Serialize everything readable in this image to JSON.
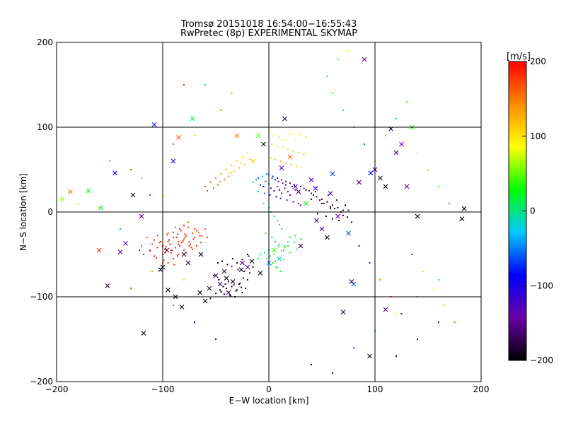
{
  "chart_data": {
    "type": "scatter",
    "title": "Tromsø 20151018 16:54:00−16:55:43",
    "subtitle": "RwPretec (8p) EXPERIMENTAL SKYMAP",
    "xlabel": "E−W location [km]",
    "ylabel": "N−S location [km]",
    "xlim": [
      -200,
      200
    ],
    "ylim": [
      -200,
      200
    ],
    "xticks": [
      -200,
      -100,
      0,
      100,
      200
    ],
    "yticks": [
      -200,
      -100,
      0,
      100,
      200
    ],
    "grid": true,
    "colorbar": {
      "label": "[m/s]",
      "range": [
        -200,
        200
      ],
      "ticks": [
        200,
        100,
        0,
        -100,
        -200
      ],
      "colors": [
        "#000000",
        "#6a00a8",
        "#0000ff",
        "#00c8ff",
        "#00ff00",
        "#ffff00",
        "#ff8c00",
        "#ff0000"
      ]
    },
    "series": [
      {
        "marker": "dot",
        "x": [
          -100,
          -95,
          -90,
          -85,
          -80,
          -78,
          -75,
          -72,
          -70,
          -68,
          -65,
          -92,
          -88,
          -84,
          -82,
          -110,
          -105,
          -98,
          -94,
          -86,
          -115,
          -112,
          -108,
          -102,
          -96,
          -90,
          -85,
          -80,
          -75,
          -70,
          -100,
          -95,
          -88,
          -83,
          -78,
          -73,
          -105,
          -100,
          -93,
          -87,
          -81,
          -98,
          -92,
          -86,
          -79,
          -120,
          -118,
          -76,
          -74,
          -71,
          -66,
          -63,
          -60,
          -58,
          -90,
          -84,
          -80,
          -76,
          -72,
          -68,
          -64,
          -108,
          -103,
          -97,
          -91,
          -85,
          -79,
          -112,
          -106,
          -99,
          -95,
          -89
        ],
        "y": [
          -40,
          -35,
          -30,
          -38,
          -32,
          -28,
          -35,
          -25,
          -30,
          -22,
          -28,
          -45,
          -42,
          -40,
          -36,
          -38,
          -42,
          -48,
          -33,
          -26,
          -30,
          -45,
          -52,
          -35,
          -27,
          -55,
          -50,
          -45,
          -40,
          -20,
          -60,
          -25,
          -18,
          -22,
          -48,
          -42,
          -28,
          -50,
          -38,
          -30,
          -34,
          -44,
          -48,
          -52,
          -26,
          -40,
          -50,
          -18,
          -38,
          -32,
          -24,
          -28,
          -20,
          -30,
          -24,
          -20,
          -16,
          -12,
          -44,
          -40,
          -36,
          -33,
          -36,
          -41,
          -45,
          -35,
          -30,
          -46,
          -54,
          -57,
          -60,
          -62
        ],
        "velocity": [
          190,
          185,
          180,
          195,
          175,
          188,
          192,
          170,
          185,
          178,
          190,
          196,
          184,
          180,
          188,
          175,
          190,
          182,
          186,
          194,
          176,
          184,
          190,
          182,
          178,
          186,
          192,
          180,
          174,
          170,
          188,
          176,
          168,
          182,
          186,
          190,
          178,
          184,
          192,
          188,
          180,
          186,
          190,
          194,
          176,
          172,
          180,
          170,
          186,
          188,
          160,
          166,
          172,
          178,
          180,
          186,
          190,
          174,
          182,
          184,
          178,
          188,
          190,
          186,
          180,
          176,
          184,
          192,
          186,
          180,
          176,
          188
        ]
      },
      {
        "marker": "dot",
        "x": [
          -40,
          -35,
          -30,
          -28,
          -25,
          -22,
          -20,
          -38,
          -33,
          -27,
          -24,
          -45,
          -42,
          -36,
          -31,
          -26,
          -18,
          -15,
          -48,
          -44,
          -39,
          -34,
          -29,
          -23,
          -19,
          -52,
          -47,
          -41,
          -37,
          -32,
          -55,
          -50,
          -46,
          -43,
          -35,
          -30,
          -25,
          -20
        ],
        "y": [
          -90,
          -88,
          -92,
          -85,
          -95,
          -90,
          -80,
          -82,
          -86,
          -84,
          -78,
          -94,
          -97,
          -99,
          -93,
          -89,
          -72,
          -65,
          -60,
          -58,
          -62,
          -55,
          -68,
          -70,
          -52,
          -75,
          -80,
          -85,
          -98,
          -100,
          -102,
          -96,
          -92,
          -88,
          -64,
          -60,
          -56,
          -50
        ],
        "velocity": [
          -195,
          -190,
          -198,
          -185,
          -192,
          -188,
          -180,
          -186,
          -194,
          -190,
          -182,
          -196,
          -192,
          -188,
          -184,
          -190,
          -176,
          -170,
          -186,
          -192,
          -194,
          -188,
          -182,
          -180,
          -176,
          -190,
          -186,
          -184,
          -196,
          -192,
          -188,
          -194,
          -190,
          -186,
          -180,
          -176,
          -184,
          -190
        ]
      },
      {
        "marker": "dot",
        "x": [
          30,
          35,
          40,
          45,
          50,
          55,
          60,
          65,
          70,
          38,
          42,
          48,
          52,
          58,
          62,
          68,
          33,
          44,
          56,
          64,
          72,
          75,
          46,
          54,
          60,
          66,
          40,
          50,
          58,
          70,
          74,
          78
        ],
        "y": [
          30,
          26,
          22,
          18,
          15,
          12,
          8,
          5,
          2,
          25,
          20,
          14,
          10,
          6,
          4,
          0,
          28,
          24,
          20,
          14,
          8,
          2,
          -2,
          -5,
          -8,
          -10,
          15,
          10,
          4,
          -4,
          -6,
          -12
        ],
        "velocity": [
          -160,
          -170,
          -175,
          -180,
          -165,
          -190,
          -185,
          -195,
          -180,
          -150,
          -160,
          -172,
          -178,
          -190,
          -186,
          -196,
          -140,
          -155,
          -176,
          -188,
          -192,
          -198,
          -180,
          -186,
          -190,
          -194,
          -168,
          -176,
          -184,
          -190,
          -194,
          -198
        ]
      },
      {
        "marker": "dot",
        "x": [
          -15,
          -12,
          -10,
          -8,
          -5,
          -3,
          0,
          2,
          5,
          8,
          10,
          12,
          15,
          18,
          20,
          -6,
          -2,
          3,
          6,
          9,
          13,
          16,
          22,
          25,
          -10,
          -4,
          1,
          7,
          11,
          17,
          23,
          28,
          30,
          0,
          4,
          8,
          12,
          16,
          20,
          24
        ],
        "y": [
          35,
          38,
          40,
          32,
          30,
          36,
          33,
          28,
          25,
          30,
          26,
          22,
          28,
          24,
          20,
          42,
          45,
          40,
          38,
          36,
          34,
          32,
          30,
          26,
          24,
          22,
          20,
          18,
          16,
          14,
          12,
          10,
          8,
          44,
          42,
          40,
          38,
          36,
          34,
          32
        ],
        "velocity": [
          -20,
          -40,
          -60,
          -80,
          -90,
          -70,
          -50,
          -100,
          -110,
          -120,
          -95,
          -130,
          -140,
          -115,
          -150,
          -30,
          -45,
          -65,
          -85,
          -105,
          -125,
          -135,
          -145,
          -155,
          -35,
          -55,
          -75,
          -95,
          -110,
          -130,
          -140,
          -150,
          -160,
          -40,
          -60,
          -80,
          -100,
          -120,
          -140,
          -150
        ]
      },
      {
        "marker": "dot",
        "x": [
          -5,
          0,
          2,
          5,
          8,
          10,
          12,
          -3,
          3,
          6,
          9,
          14,
          -8,
          -2,
          4,
          7,
          11,
          15,
          18,
          0,
          5,
          10,
          15,
          20,
          25,
          -10,
          -4,
          1,
          6,
          12,
          18,
          24,
          30,
          2,
          8,
          14,
          20,
          26
        ],
        "y": [
          10,
          5,
          0,
          -5,
          -10,
          -15,
          -20,
          -25,
          -30,
          -35,
          -40,
          -45,
          -50,
          -55,
          -60,
          -65,
          -70,
          -40,
          -35,
          -45,
          -50,
          -38,
          -42,
          -30,
          -28,
          -55,
          -48,
          -52,
          -58,
          -46,
          -40,
          -36,
          -32,
          -62,
          -66,
          -56,
          -48,
          -44
        ],
        "velocity": [
          10,
          15,
          20,
          5,
          0,
          -5,
          25,
          30,
          20,
          10,
          15,
          5,
          0,
          10,
          20,
          30,
          25,
          15,
          5,
          10,
          20,
          30,
          40,
          25,
          15,
          10,
          0,
          5,
          15,
          25,
          35,
          20,
          10,
          30,
          40,
          35,
          25,
          15
        ]
      },
      {
        "marker": "dot",
        "x": [
          0,
          5,
          10,
          15,
          20,
          25,
          30,
          35,
          3,
          8,
          13,
          18,
          23,
          28,
          33,
          2,
          6,
          11,
          16,
          21,
          26,
          31
        ],
        "y": [
          95,
          90,
          88,
          85,
          92,
          86,
          90,
          88,
          80,
          78,
          76,
          74,
          72,
          70,
          68,
          64,
          62,
          60,
          58,
          56,
          54,
          52
        ],
        "velocity": [
          80,
          90,
          100,
          85,
          95,
          88,
          92,
          98,
          60,
          70,
          75,
          80,
          65,
          55,
          50,
          110,
          120,
          130,
          115,
          125,
          105,
          100
        ]
      },
      {
        "marker": "dot",
        "x": [
          -60,
          -55,
          -50,
          -45,
          -40,
          -35,
          -30,
          -25,
          -20,
          -52,
          -48,
          -42,
          -38,
          -33,
          -28,
          -23,
          -18,
          -58,
          -46,
          -36,
          -26
        ],
        "y": [
          30,
          35,
          40,
          45,
          50,
          55,
          60,
          65,
          70,
          28,
          32,
          38,
          42,
          48,
          52,
          56,
          62,
          25,
          36,
          46,
          58
        ],
        "velocity": [
          170,
          160,
          150,
          140,
          130,
          120,
          110,
          100,
          90,
          175,
          165,
          155,
          145,
          135,
          125,
          115,
          105,
          180,
          150,
          130,
          110
        ]
      },
      {
        "marker": "dot",
        "x": [
          -150,
          -130,
          -120,
          -112,
          -90,
          -70,
          -60,
          -180,
          -160,
          -140,
          -122,
          -100,
          -80,
          -45,
          -35,
          60,
          70,
          80,
          90,
          100,
          110,
          120,
          130,
          140,
          150,
          160,
          170,
          180,
          85,
          95,
          105,
          115,
          125,
          135,
          145,
          155,
          165,
          175,
          55,
          65,
          75,
          120,
          140,
          160,
          -130,
          -110,
          -90,
          -70,
          -50,
          40,
          60,
          80,
          100,
          120,
          140,
          160,
          -100,
          -80
        ],
        "y": [
          60,
          50,
          40,
          20,
          80,
          90,
          150,
          10,
          5,
          -20,
          -45,
          -60,
          -80,
          120,
          140,
          140,
          120,
          100,
          80,
          60,
          90,
          110,
          130,
          70,
          50,
          30,
          10,
          -10,
          -40,
          -60,
          -80,
          -100,
          -120,
          -50,
          -70,
          -90,
          -110,
          -130,
          160,
          180,
          190,
          -170,
          -150,
          -130,
          -90,
          -70,
          -110,
          -130,
          -150,
          -180,
          -190,
          -160,
          -140,
          -120,
          -100,
          -80,
          20,
          150
        ],
        "velocity": [
          150,
          170,
          40,
          190,
          180,
          60,
          20,
          100,
          120,
          -40,
          190,
          170,
          110,
          160,
          140,
          30,
          10,
          -20,
          -60,
          120,
          140,
          -10,
          40,
          80,
          60,
          20,
          -40,
          0,
          -80,
          -120,
          160,
          180,
          -140,
          -100,
          60,
          90,
          130,
          170,
          20,
          40,
          90,
          -180,
          -160,
          -120,
          180,
          140,
          -40,
          -90,
          -180,
          -170,
          -190,
          -60,
          -30,
          90,
          150,
          -10,
          60,
          190
        ]
      },
      {
        "marker": "cross",
        "x": [
          -195,
          -187,
          -170,
          -158,
          -145,
          -135,
          -140,
          -160,
          -108,
          -100,
          -96,
          -90,
          -85,
          -80,
          -76,
          -72,
          -65,
          -60,
          -56,
          -50,
          -46,
          -42,
          -38,
          -30,
          -25,
          -20,
          -15,
          -10,
          -5,
          0,
          5,
          10,
          15,
          20,
          25,
          30,
          35,
          40,
          45,
          50,
          55,
          60,
          65,
          70,
          75,
          80,
          85,
          90,
          95,
          100,
          105,
          110,
          115,
          120,
          125,
          130,
          135,
          140,
          -118,
          -102,
          -95,
          -88,
          -82,
          -64,
          -40,
          -34,
          -26,
          -16,
          -8,
          12,
          28,
          44,
          58,
          78,
          96,
          110,
          182,
          184,
          -152,
          -128,
          -120
        ],
        "y": [
          15,
          24,
          25,
          5,
          46,
          -37,
          -47,
          -45,
          103,
          -65,
          -45,
          60,
          88,
          -50,
          -60,
          110,
          -95,
          -105,
          -90,
          -75,
          -85,
          -70,
          -95,
          90,
          -60,
          -65,
          60,
          90,
          80,
          -60,
          -45,
          -55,
          110,
          65,
          30,
          -40,
          10,
          38,
          -10,
          -20,
          -30,
          45,
          -5,
          -118,
          -25,
          -85,
          35,
          180,
          -170,
          50,
          40,
          30,
          98,
          70,
          80,
          30,
          100,
          -5,
          -143,
          -68,
          -92,
          -100,
          -112,
          -50,
          -78,
          -82,
          -68,
          -58,
          -72,
          52,
          24,
          28,
          22,
          -82,
          46,
          -115,
          -8,
          4,
          -87,
          20,
          -5
        ],
        "velocity": [
          60,
          150,
          30,
          20,
          -100,
          -120,
          -140,
          180,
          -80,
          -190,
          -180,
          -90,
          170,
          -185,
          -175,
          10,
          -195,
          -190,
          -185,
          -180,
          -175,
          -170,
          -160,
          150,
          -160,
          -150,
          110,
          50,
          -200,
          -40,
          40,
          -20,
          -180,
          160,
          -110,
          -190,
          20,
          -120,
          -150,
          -160,
          -195,
          -70,
          -130,
          -180,
          -70,
          -60,
          -170,
          -150,
          -200,
          -160,
          -190,
          -195,
          -180,
          -170,
          -140,
          -130,
          20,
          -200,
          -200,
          -200,
          -200,
          -190,
          -195,
          -200,
          -195,
          -195,
          -190,
          -200,
          -190,
          -120,
          -150,
          -100,
          -130,
          -170,
          -90,
          -150,
          -200,
          -200,
          -180,
          -190,
          -160
        ]
      }
    ]
  }
}
